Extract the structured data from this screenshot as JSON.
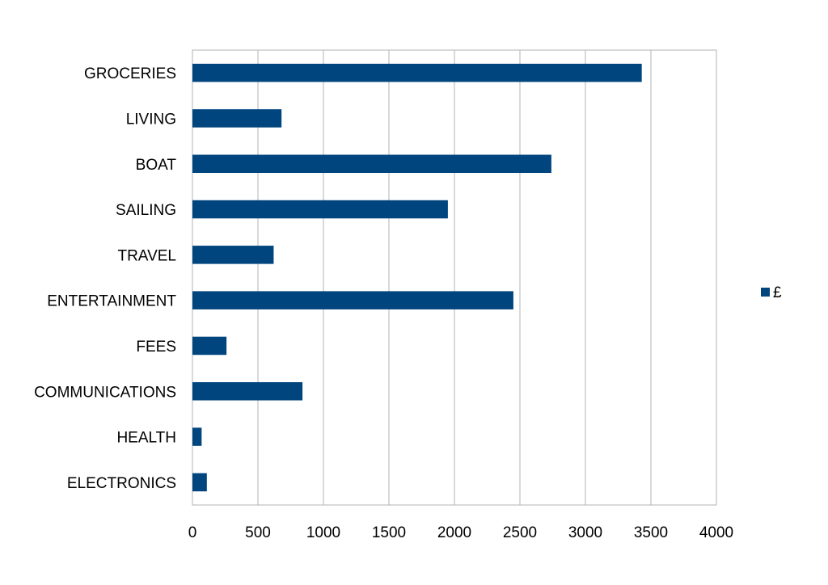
{
  "chart_data": {
    "type": "bar",
    "orientation": "horizontal",
    "categories": [
      "GROCERIES",
      "LIVING",
      "BOAT",
      "SAILING",
      "TRAVEL",
      "ENTERTAINMENT",
      "FEES",
      "COMMUNICATIONS",
      "HEALTH",
      "ELECTRONICS"
    ],
    "series": [
      {
        "name": "£",
        "values": [
          3430,
          680,
          2740,
          1950,
          620,
          2450,
          260,
          840,
          70,
          110
        ]
      }
    ],
    "title": "",
    "xlabel": "",
    "ylabel": "",
    "xlim": [
      0,
      4000
    ],
    "x_ticks": [
      0,
      500,
      1000,
      1500,
      2000,
      2500,
      3000,
      3500,
      4000
    ],
    "grid": true,
    "legend": "right",
    "bar_color": "#00457e",
    "grid_color": "#b3b3b3"
  }
}
